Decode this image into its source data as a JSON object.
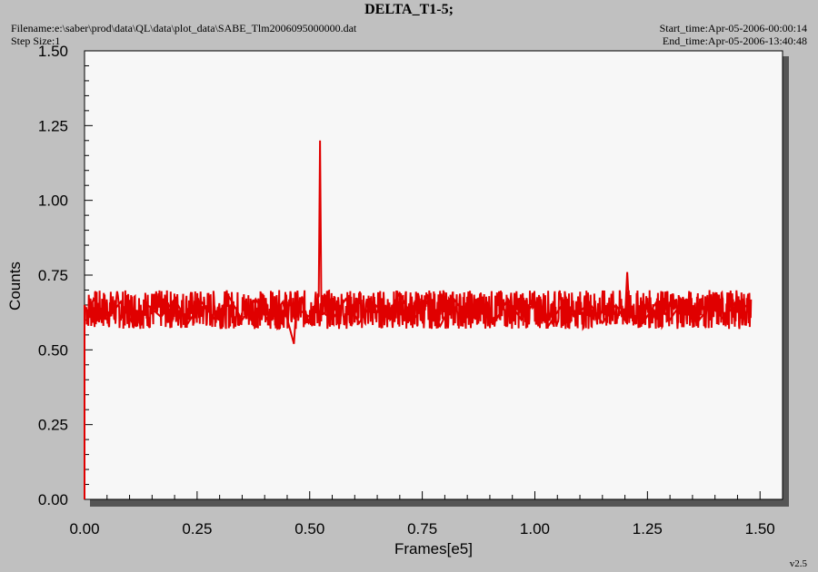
{
  "header": {
    "title": "DELTA_T1-5;",
    "filename": "Filename:e:\\saber\\prod\\data\\QL\\data\\plot_data\\SABE_Tlm2006095000000.dat",
    "step_size": "Step Size:1",
    "start_time": "Start_time:Apr-05-2006-00:00:14",
    "end_time": "End_time:Apr-05-2006-13:40:48",
    "version": "v2.5"
  },
  "colors": {
    "series": "#e00000",
    "plot_bg": "#f7f7f7",
    "frame_bg": "#c0c0c0",
    "shadow": "#555555"
  },
  "chart_data": {
    "type": "line",
    "title": "DELTA_T1-5;",
    "xlabel": "Frames[e5]",
    "ylabel": "Counts",
    "xlim": [
      0.0,
      1.55
    ],
    "ylim": [
      0.0,
      1.5
    ],
    "x_ticks": [
      "0.00",
      "0.25",
      "0.50",
      "0.75",
      "1.00",
      "1.25",
      "1.50"
    ],
    "y_ticks": [
      "0.00",
      "0.25",
      "0.50",
      "0.75",
      "1.00",
      "1.25",
      "1.50"
    ],
    "grid": false,
    "series": [
      {
        "x": [
          0.0,
          0.0,
          0.005,
          0.02,
          0.05,
          0.08,
          0.11,
          0.14,
          0.17,
          0.2,
          0.23,
          0.26,
          0.29,
          0.32,
          0.35,
          0.38,
          0.41,
          0.44,
          0.465,
          0.47,
          0.5,
          0.52,
          0.523,
          0.526,
          0.55,
          0.58,
          0.61,
          0.64,
          0.67,
          0.7,
          0.73,
          0.76,
          0.79,
          0.82,
          0.85,
          0.88,
          0.91,
          0.94,
          0.97,
          1.0,
          1.03,
          1.06,
          1.09,
          1.12,
          1.15,
          1.18,
          1.2,
          1.205,
          1.21,
          1.24,
          1.27,
          1.3,
          1.33,
          1.36,
          1.39,
          1.42,
          1.45,
          1.48
        ],
        "y": [
          0.0,
          0.65,
          0.6,
          0.67,
          0.6,
          0.66,
          0.58,
          0.65,
          0.61,
          0.67,
          0.59,
          0.66,
          0.6,
          0.68,
          0.6,
          0.67,
          0.59,
          0.66,
          0.52,
          0.64,
          0.61,
          0.68,
          1.2,
          0.63,
          0.6,
          0.67,
          0.59,
          0.66,
          0.61,
          0.69,
          0.6,
          0.66,
          0.58,
          0.67,
          0.61,
          0.65,
          0.59,
          0.67,
          0.6,
          0.66,
          0.58,
          0.65,
          0.61,
          0.66,
          0.59,
          0.65,
          0.6,
          0.76,
          0.63,
          0.59,
          0.66,
          0.6,
          0.67,
          0.59,
          0.65,
          0.6,
          0.67,
          0.63
        ]
      }
    ]
  }
}
